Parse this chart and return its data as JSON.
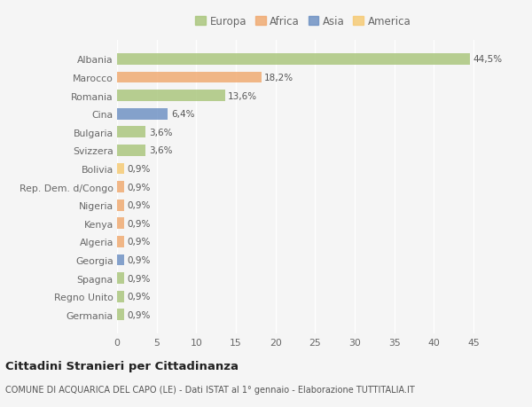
{
  "countries": [
    "Albania",
    "Marocco",
    "Romania",
    "Cina",
    "Bulgaria",
    "Svizzera",
    "Bolivia",
    "Rep. Dem. d/Congo",
    "Nigeria",
    "Kenya",
    "Algeria",
    "Georgia",
    "Spagna",
    "Regno Unito",
    "Germania"
  ],
  "values": [
    44.5,
    18.2,
    13.6,
    6.4,
    3.6,
    3.6,
    0.9,
    0.9,
    0.9,
    0.9,
    0.9,
    0.9,
    0.9,
    0.9,
    0.9
  ],
  "labels": [
    "44,5%",
    "18,2%",
    "13,6%",
    "6,4%",
    "3,6%",
    "3,6%",
    "0,9%",
    "0,9%",
    "0,9%",
    "0,9%",
    "0,9%",
    "0,9%",
    "0,9%",
    "0,9%",
    "0,9%"
  ],
  "colors": [
    "#a8c57a",
    "#f0a86e",
    "#a8c57a",
    "#6b8fc2",
    "#a8c57a",
    "#a8c57a",
    "#f5c971",
    "#f0a86e",
    "#f0a86e",
    "#f0a86e",
    "#f0a86e",
    "#6b8fc2",
    "#a8c57a",
    "#a8c57a",
    "#a8c57a"
  ],
  "legend": {
    "Europa": "#a8c57a",
    "Africa": "#f0a86e",
    "Asia": "#6b8fc2",
    "America": "#f5c971"
  },
  "xlim": [
    0,
    47
  ],
  "xticks": [
    0,
    5,
    10,
    15,
    20,
    25,
    30,
    35,
    40,
    45
  ],
  "title": "Cittadini Stranieri per Cittadinanza",
  "subtitle": "COMUNE DI ACQUARICA DEL CAPO (LE) - Dati ISTAT al 1° gennaio - Elaborazione TUTTITALIA.IT",
  "bg_color": "#f5f5f5",
  "bar_alpha": 0.82,
  "grid_color": "#ffffff",
  "label_color": "#666666",
  "value_label_color": "#555555",
  "figsize": [
    6.0,
    4.6
  ],
  "dpi": 100
}
